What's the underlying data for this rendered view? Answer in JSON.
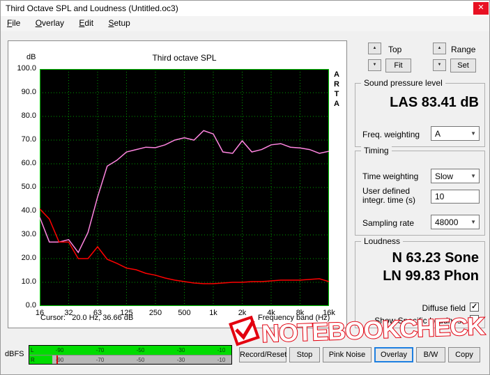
{
  "window": {
    "title": "Third Octave SPL and Loudness (Untitled.oc3)"
  },
  "icons": {
    "close": "✕",
    "up": "▲",
    "down": "▼",
    "dropdown": "▼",
    "check": "✓"
  },
  "menu": {
    "items": [
      {
        "label": "File"
      },
      {
        "label": "Overlay"
      },
      {
        "label": "Edit"
      },
      {
        "label": "Setup"
      }
    ]
  },
  "chart_data": {
    "type": "line",
    "title": "Third octave SPL",
    "ylabel": "dB",
    "xlabel": "Frequency band (Hz)",
    "ylim": [
      0,
      100
    ],
    "grid": true,
    "bg": "#000000",
    "grid_color": "#00a000",
    "frame_color": "#00c800",
    "yticks": [
      "100.0",
      "90.0",
      "80.0",
      "70.0",
      "60.0",
      "50.0",
      "40.0",
      "30.0",
      "20.0",
      "10.0",
      "0.0"
    ],
    "xticks": [
      "16",
      "32",
      "63",
      "125",
      "250",
      "500",
      "1k",
      "2k",
      "4k",
      "8k",
      "16k"
    ],
    "bands": [
      "16",
      "20",
      "25",
      "31.5",
      "40",
      "50",
      "63",
      "80",
      "100",
      "125",
      "160",
      "200",
      "250",
      "315",
      "400",
      "500",
      "630",
      "800",
      "1k",
      "1.25k",
      "1.6k",
      "2k",
      "2.5k",
      "3.15k",
      "4k",
      "5k",
      "6.3k",
      "8k",
      "10k",
      "12.5k",
      "16k"
    ],
    "series": [
      {
        "name": "current-spl-magenta",
        "color": "#ff85e0",
        "values": [
          37.4,
          27.0,
          27.0,
          28.0,
          22.6,
          31.0,
          46.0,
          59.0,
          61.5,
          65.0,
          66.0,
          67.0,
          66.8,
          68.0,
          70.0,
          71.0,
          70.0,
          74.0,
          72.6,
          65.0,
          64.4,
          69.7,
          65.0,
          66.0,
          68.0,
          68.5,
          67.0,
          66.7,
          66.0,
          64.4,
          65.3
        ]
      },
      {
        "name": "noise-floor-red",
        "color": "#ff0000",
        "values": [
          41.0,
          36.7,
          27.0,
          27.0,
          20.0,
          20.0,
          25.0,
          19.7,
          18.0,
          16.0,
          15.3,
          13.8,
          13.0,
          11.8,
          10.9,
          10.3,
          9.7,
          9.4,
          9.4,
          9.7,
          10.0,
          10.0,
          10.3,
          10.3,
          10.6,
          10.9,
          10.9,
          10.9,
          11.2,
          11.5,
          10.3
        ]
      }
    ]
  },
  "chart_footer": {
    "cursor": "Cursor:   20.0 Hz, 36.66 dB"
  },
  "arta": [
    "A",
    "R",
    "T",
    "A"
  ],
  "controls": {
    "top_label": "Top",
    "range_label": "Range",
    "fit": "Fit",
    "set": "Set",
    "spl_group": "Sound pressure level",
    "spl_value": "LAS 83.41 dB",
    "freq_weighting_label": "Freq. weighting",
    "freq_weighting_value": "A",
    "timing_group": "Timing",
    "time_weighting_label": "Time weighting",
    "time_weighting_value": "Slow",
    "integr_label_1": "User defined",
    "integr_label_2": "integr. time (s)",
    "integr_value": "10",
    "sampling_label": "Sampling rate",
    "sampling_value": "48000",
    "loudness_group": "Loudness",
    "loudness_n": "N 63.23 Sone",
    "loudness_ln": "LN 99.83 Phon",
    "diffuse_label": "Diffuse field",
    "show_specific_label": "Show Specific Loudness"
  },
  "meter": {
    "label": "dBFS",
    "channels": [
      "L",
      "R"
    ],
    "ticks": [
      "-90",
      "-70",
      "-50",
      "-30",
      "-10"
    ],
    "l_level": 1.0,
    "r_level": 0.115,
    "r_peak": 0.135
  },
  "buttons": [
    {
      "label": "Record/Reset"
    },
    {
      "label": "Stop"
    },
    {
      "label": "Pink Noise"
    },
    {
      "label": "Overlay"
    },
    {
      "label": "B/W"
    },
    {
      "label": "Copy"
    }
  ],
  "watermark": {
    "text": "NOTEBOOKCHECK",
    "color": "#e3000f"
  }
}
